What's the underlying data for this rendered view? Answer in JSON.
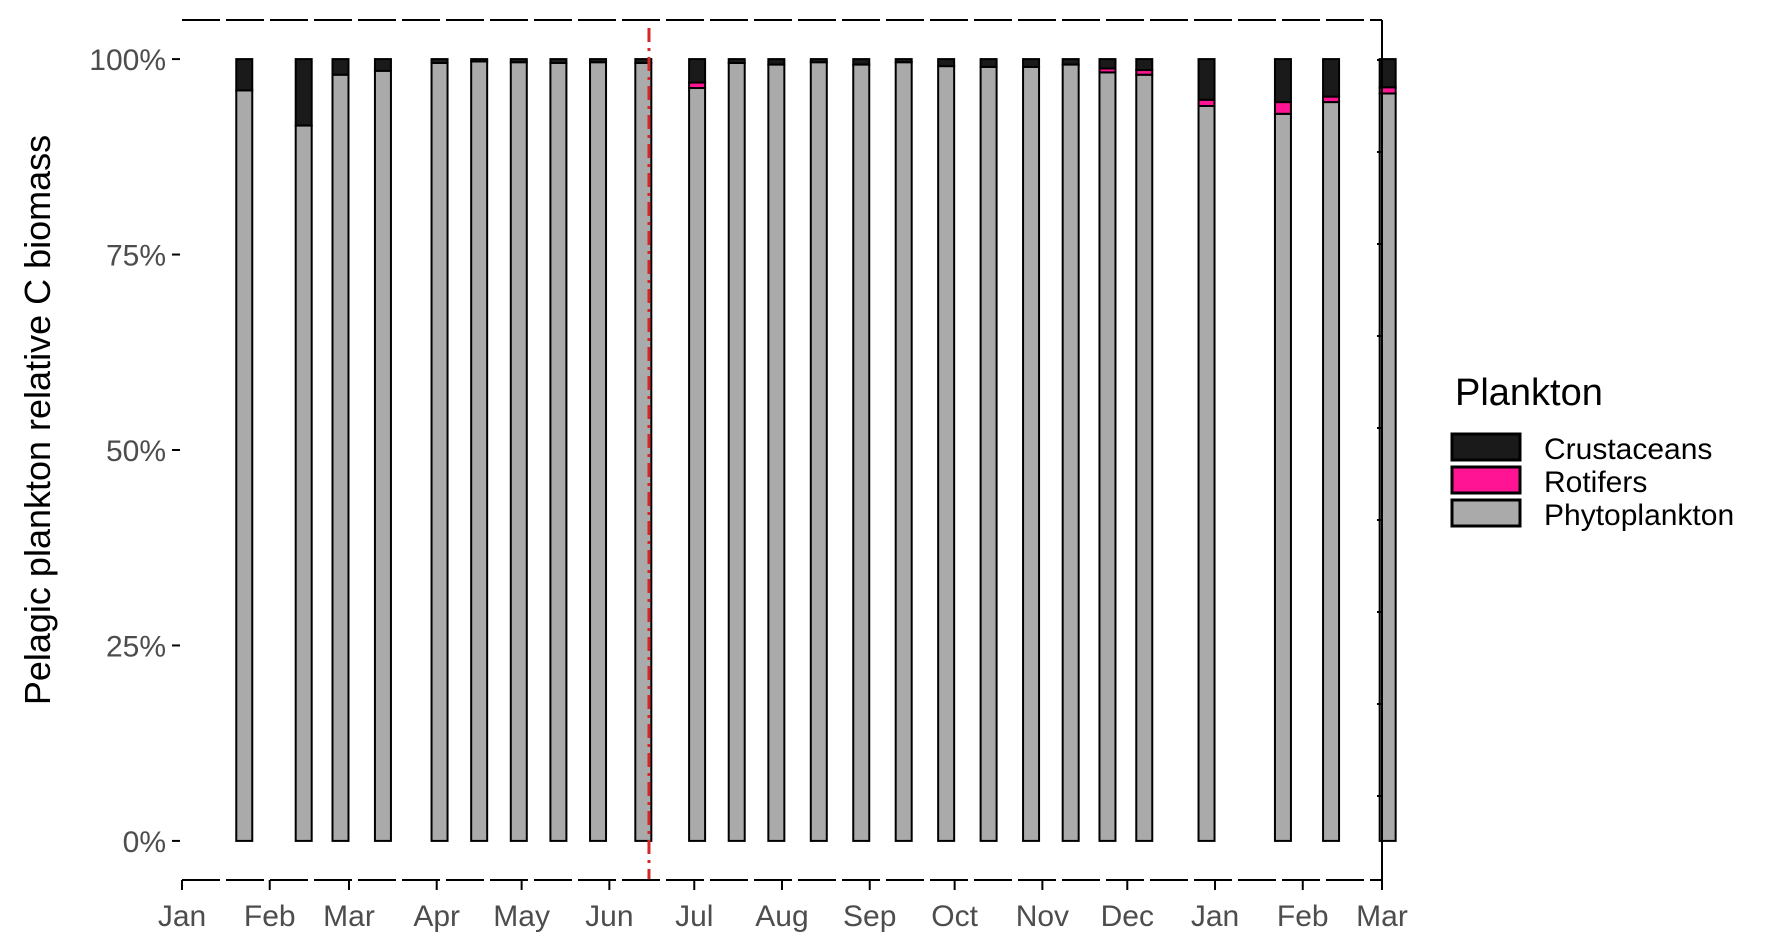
{
  "chart_data": {
    "type": "bar",
    "stacked": true,
    "ylabel": "Pelagic plankton relative C biomass",
    "ylim": [
      -0.05,
      1.05
    ],
    "y_ticks": [
      0,
      0.25,
      0.5,
      0.75,
      1.0
    ],
    "y_tick_labels": [
      "0%",
      "25%",
      "50%",
      "75%",
      "100%"
    ],
    "x_range": [
      "2021-01-01",
      "2022-03-01"
    ],
    "x_ticks": [
      "2021-01-01",
      "2021-02-01",
      "2021-03-01",
      "2021-04-01",
      "2021-05-01",
      "2021-06-01",
      "2021-07-01",
      "2021-08-01",
      "2021-09-01",
      "2021-10-01",
      "2021-11-01",
      "2021-12-01",
      "2022-01-01",
      "2022-02-01",
      "2022-03-01"
    ],
    "x_tick_labels": [
      "Jan",
      "Feb",
      "Mar",
      "Apr",
      "May",
      "Jun",
      "Jul",
      "Aug",
      "Sep",
      "Oct",
      "Nov",
      "Dec",
      "Jan",
      "Feb",
      "Mar"
    ],
    "grid": false,
    "reference_line": {
      "x": "2021-06-15",
      "color": "#d62728",
      "style": "dashed"
    },
    "legend": {
      "title": "Plankton",
      "position": "right",
      "entries": [
        {
          "name": "Crustaceans",
          "color": "#1a1a1a"
        },
        {
          "name": "Rotifers",
          "color": "#ff1493"
        },
        {
          "name": "Phytoplankton",
          "color": "#aaaaaa"
        }
      ]
    },
    "series": [
      {
        "name": "Phytoplankton",
        "color": "#aaaaaa",
        "values": [
          0.96,
          0.915,
          0.98,
          0.985,
          0.995,
          0.997,
          0.996,
          0.995,
          0.996,
          0.995,
          0.963,
          0.995,
          0.993,
          0.996,
          0.993,
          0.996,
          0.991,
          0.99,
          0.99,
          0.993,
          0.983,
          0.98,
          0.94,
          0.93,
          0.945,
          0.956
        ]
      },
      {
        "name": "Rotifers",
        "color": "#ff1493",
        "values": [
          0,
          0,
          0,
          0,
          0,
          0,
          0,
          0,
          0,
          0,
          0.007,
          0,
          0,
          0,
          0,
          0,
          0,
          0,
          0,
          0,
          0.005,
          0.006,
          0.008,
          0.015,
          0.007,
          0.008
        ]
      },
      {
        "name": "Crustaceans",
        "color": "#1a1a1a",
        "values": [
          0.04,
          0.085,
          0.02,
          0.015,
          0.005,
          0.003,
          0.004,
          0.005,
          0.004,
          0.005,
          0.03,
          0.005,
          0.007,
          0.004,
          0.007,
          0.004,
          0.009,
          0.01,
          0.01,
          0.007,
          0.012,
          0.014,
          0.052,
          0.055,
          0.048,
          0.036
        ]
      }
    ],
    "dates": [
      "2021-01-23",
      "2021-02-13",
      "2021-02-26",
      "2021-03-13",
      "2021-04-02",
      "2021-04-16",
      "2021-04-30",
      "2021-05-14",
      "2021-05-28",
      "2021-06-13",
      "2021-07-02",
      "2021-07-16",
      "2021-07-30",
      "2021-08-14",
      "2021-08-29",
      "2021-09-13",
      "2021-09-28",
      "2021-10-13",
      "2021-10-28",
      "2021-11-11",
      "2021-11-24",
      "2021-12-07",
      "2021-12-29",
      "2022-01-25",
      "2022-02-11",
      "2022-03-03"
    ]
  }
}
